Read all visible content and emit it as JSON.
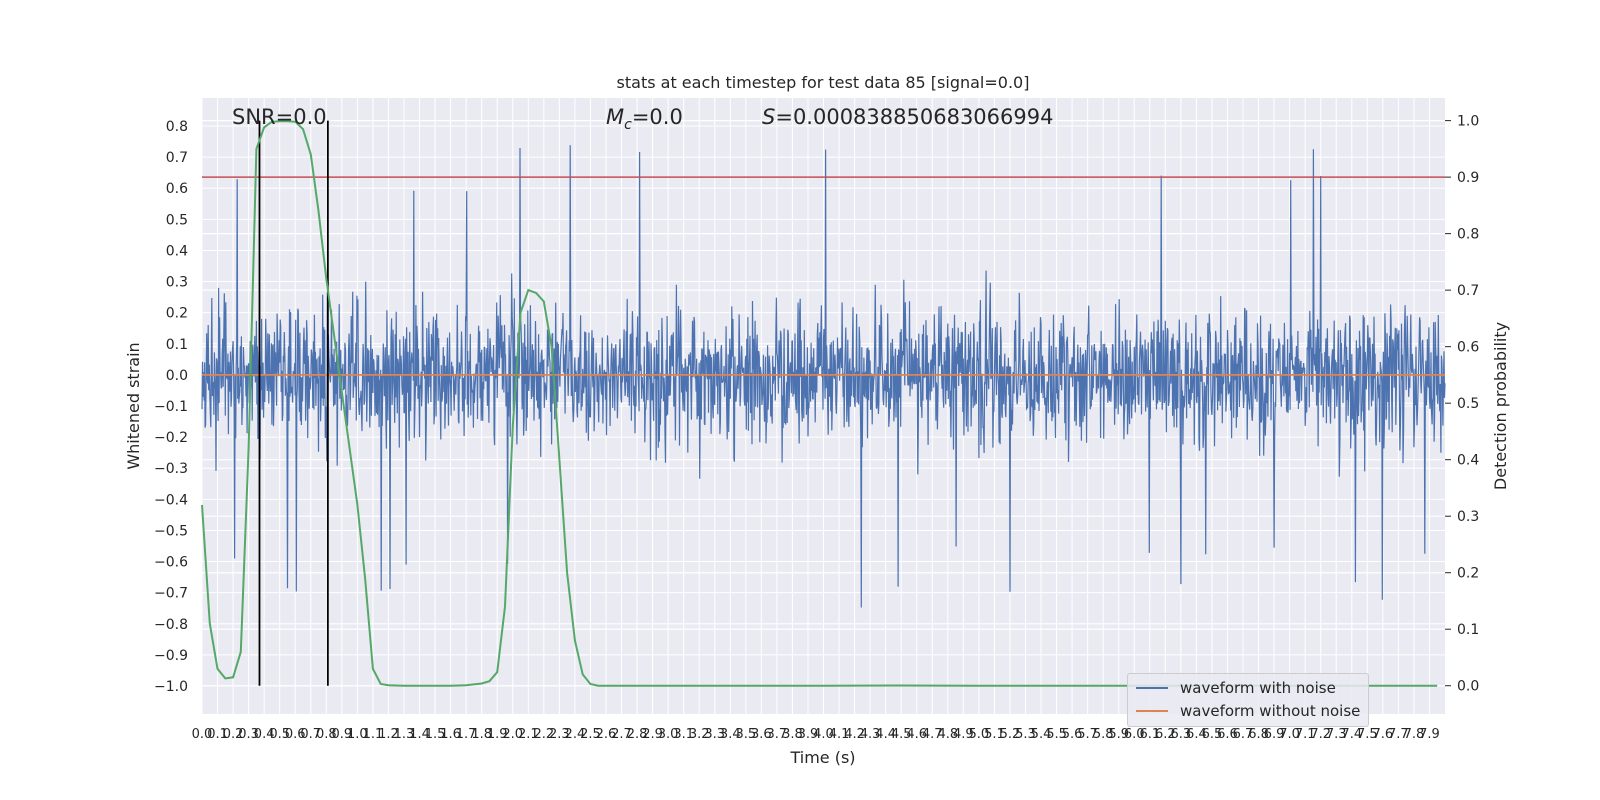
{
  "chart_data": {
    "type": "line",
    "title": "stats at each timestep for test data 85 [signal=0.0]",
    "xlabel": "Time (s)",
    "ylabel_left": "Whitened strain",
    "ylabel_right": "Detection probability",
    "xlim": [
      0.0,
      8.0
    ],
    "ylim_left": [
      -1.09,
      0.89
    ],
    "ylim_right": [
      -0.05,
      1.04
    ],
    "x_ticks": [
      "0.0",
      "0.1",
      "0.2",
      "0.3",
      "0.4",
      "0.5",
      "0.6",
      "0.7",
      "0.8",
      "0.9",
      "1.0",
      "1.1",
      "1.2",
      "1.3",
      "1.4",
      "1.5",
      "1.6",
      "1.7",
      "1.8",
      "1.9",
      "2.0",
      "2.1",
      "2.2",
      "2.3",
      "2.4",
      "2.5",
      "2.6",
      "2.7",
      "2.8",
      "2.9",
      "3.0",
      "3.1",
      "3.2",
      "3.3",
      "3.4",
      "3.5",
      "3.6",
      "3.7",
      "3.8",
      "3.9",
      "4.0",
      "4.1",
      "4.2",
      "4.3",
      "4.4",
      "4.5",
      "4.6",
      "4.7",
      "4.8",
      "4.9",
      "5.0",
      "5.1",
      "5.2",
      "5.3",
      "5.4",
      "5.5",
      "5.6",
      "5.7",
      "5.8",
      "5.9",
      "6.0",
      "6.1",
      "6.2",
      "6.3",
      "6.4",
      "6.5",
      "6.6",
      "6.7",
      "6.8",
      "6.9",
      "7.0",
      "7.1",
      "7.2",
      "7.3",
      "7.4",
      "7.5",
      "7.6",
      "7.7",
      "7.8",
      "7.9"
    ],
    "y_ticks_left": [
      "0.8",
      "0.7",
      "0.6",
      "0.5",
      "0.4",
      "0.3",
      "0.2",
      "0.1",
      "0.0",
      "−0.1",
      "−0.2",
      "−0.3",
      "−0.4",
      "−0.5",
      "−0.6",
      "−0.7",
      "−0.8",
      "−0.9",
      "−1.0"
    ],
    "y_ticks_right": [
      "1.0",
      "0.9",
      "0.8",
      "0.7",
      "0.6",
      "0.5",
      "0.4",
      "0.3",
      "0.2",
      "0.1",
      "0.0"
    ],
    "annotations": {
      "snr": "SNR=0.0",
      "mc_symbol": "M",
      "mc_sub": "c",
      "mc_value": "=0.0",
      "s_symbol": "S",
      "s_value": "=0.000838850683066994"
    },
    "threshold": 0.9,
    "vertical_lines": [
      0.37,
      0.81
    ],
    "series": [
      {
        "name": "waveform with noise",
        "color": "#4c72b0",
        "axis": "left",
        "noise_envelope": 0.3,
        "note": "dense noisy strain around 0"
      },
      {
        "name": "waveform without noise",
        "color": "#dd8452",
        "axis": "left",
        "constant": 0.0
      },
      {
        "name": "detection probability",
        "color": "#55a868",
        "axis": "right",
        "x": [
          0.0,
          0.05,
          0.1,
          0.15,
          0.2,
          0.25,
          0.3,
          0.35,
          0.4,
          0.45,
          0.5,
          0.55,
          0.6,
          0.65,
          0.7,
          0.75,
          0.8,
          0.85,
          0.9,
          0.95,
          1.0,
          1.05,
          1.1,
          1.15,
          1.2,
          1.3,
          1.4,
          1.5,
          1.6,
          1.7,
          1.8,
          1.85,
          1.9,
          1.95,
          2.0,
          2.05,
          2.1,
          2.15,
          2.2,
          2.25,
          2.3,
          2.35,
          2.4,
          2.45,
          2.5,
          2.55,
          2.6,
          2.65,
          2.7,
          3.0,
          4.0,
          4.5,
          5.0,
          6.0,
          7.0,
          7.95
        ],
        "y": [
          0.32,
          0.11,
          0.03,
          0.013,
          0.015,
          0.06,
          0.42,
          0.95,
          0.988,
          0.998,
          0.999,
          0.999,
          0.998,
          0.985,
          0.94,
          0.84,
          0.72,
          0.62,
          0.52,
          0.42,
          0.32,
          0.19,
          0.03,
          0.003,
          0.001,
          0.0,
          0.0,
          0.0,
          0.0,
          0.001,
          0.004,
          0.008,
          0.024,
          0.14,
          0.46,
          0.66,
          0.7,
          0.695,
          0.68,
          0.6,
          0.4,
          0.2,
          0.08,
          0.02,
          0.003,
          0.0,
          0.0,
          0.0,
          0.0,
          0.0,
          0.0,
          0.0005,
          0.0,
          0.0,
          0.0,
          0.0
        ]
      }
    ],
    "legend": [
      "waveform with noise",
      "waveform without noise"
    ],
    "legend_position": "lower-right",
    "colors": {
      "background": "#eaeaf2",
      "grid": "#ffffff",
      "threshold": "#c44e52",
      "vlines": "#000000"
    }
  }
}
